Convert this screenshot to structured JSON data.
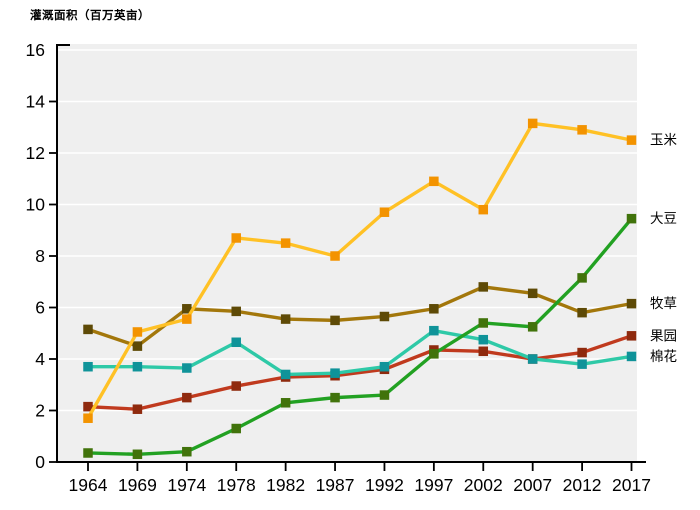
{
  "chart_data": {
    "type": "line",
    "title": "灌溉面积（百万英亩）",
    "ylabel": "灌溉面积（百万英亩）",
    "xlabel": "",
    "x_categories": [
      "1964",
      "1969",
      "1974",
      "1978",
      "1982",
      "1987",
      "1992",
      "1997",
      "2002",
      "2007",
      "2012",
      "2017"
    ],
    "ylim": [
      0,
      16
    ],
    "ytick_step": 2,
    "yticks": [
      0,
      2,
      4,
      6,
      8,
      10,
      12,
      14,
      16
    ],
    "grid": true,
    "legend_position": "right-of-last-point",
    "colors": {
      "plot_background": "#efefef",
      "gridline": "#ffffff",
      "axis": "#000000",
      "tick_label": "#000000",
      "legend_text": "#000000"
    },
    "series": [
      {
        "key": "hay",
        "name": "牧草",
        "line_color": "#a3770b",
        "marker_color": "#5e4a06",
        "values": [
          5.15,
          4.5,
          5.95,
          5.85,
          5.55,
          5.5,
          5.65,
          5.95,
          6.8,
          6.55,
          5.8,
          6.15
        ]
      },
      {
        "key": "orchard",
        "name": "果园",
        "line_color": "#c03a1e",
        "marker_color": "#8f2a0e",
        "values": [
          2.15,
          2.05,
          2.5,
          2.95,
          3.3,
          3.35,
          3.6,
          4.35,
          4.3,
          4.0,
          4.25,
          4.9
        ]
      },
      {
        "key": "cotton",
        "name": "棉花",
        "line_color": "#2ec9a7",
        "marker_color": "#0f9399",
        "values": [
          3.7,
          3.7,
          3.65,
          4.65,
          3.4,
          3.45,
          3.7,
          5.1,
          4.75,
          4.0,
          3.8,
          4.1
        ]
      },
      {
        "key": "soybean",
        "name": "大豆",
        "line_color": "#22a122",
        "marker_color": "#41730b",
        "values": [
          0.35,
          0.3,
          0.4,
          1.3,
          2.3,
          2.5,
          2.6,
          4.2,
          5.4,
          5.25,
          7.15,
          9.45
        ]
      },
      {
        "key": "corn",
        "name": "玉米",
        "line_color": "#ffc125",
        "marker_color": "#f39300",
        "values": [
          1.7,
          5.05,
          5.55,
          8.7,
          8.5,
          8.0,
          9.7,
          10.9,
          9.8,
          13.15,
          12.9,
          12.5
        ]
      }
    ]
  }
}
